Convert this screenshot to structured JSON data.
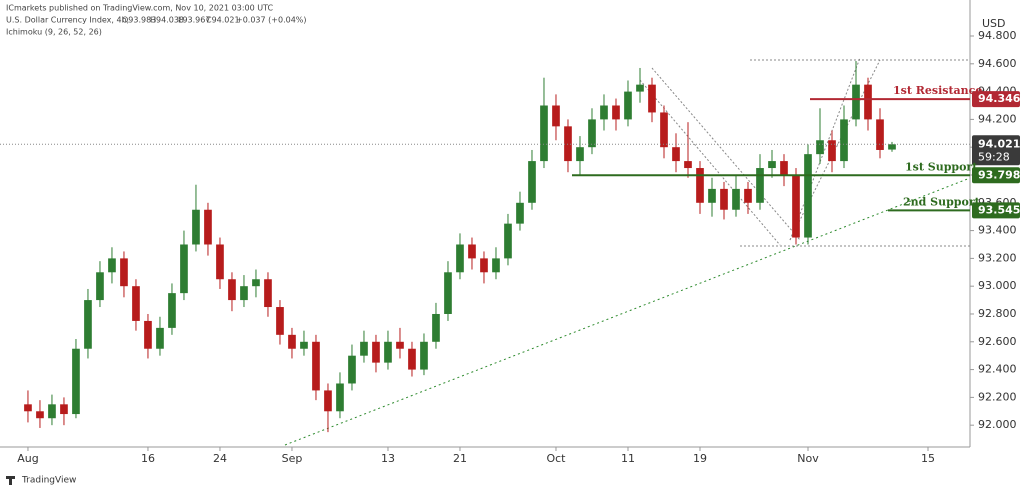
{
  "header": {
    "publisher": "ICmarkets published on TradingView.com, Nov 10, 2021 03:00 UTC",
    "symbol": "U.S. Dollar Currency Index, 4h,",
    "ohlc": [
      "O93.983",
      "H94.038",
      "L93.967",
      "C94.021",
      "+0.037 (+0.04%)"
    ],
    "indicator": "Ichimoku (9, 26, 52, 26)"
  },
  "chart_data": {
    "type": "candlestick",
    "currency": "USD",
    "up_color": "#2e7d32",
    "down_color": "#b71c1c",
    "x": [
      0,
      1,
      2,
      3,
      4,
      5,
      6,
      7,
      8,
      9,
      10,
      11,
      12,
      13,
      14,
      15,
      16,
      17,
      18,
      19,
      20,
      21,
      22,
      23,
      24,
      25,
      26,
      27,
      28,
      29,
      30,
      31,
      32,
      33,
      34,
      35,
      36,
      37,
      38,
      39,
      40,
      41,
      42,
      43,
      44,
      45,
      46,
      47,
      48,
      49,
      50,
      51,
      52,
      53,
      54,
      55,
      56,
      57,
      58,
      59,
      60,
      61,
      62,
      63,
      64,
      65,
      66,
      67,
      68,
      69,
      70,
      71,
      72
    ],
    "open": [
      92.15,
      92.1,
      92.05,
      92.15,
      92.08,
      92.55,
      92.9,
      93.1,
      93.2,
      93.0,
      92.75,
      92.55,
      92.7,
      92.95,
      93.3,
      93.55,
      93.3,
      93.05,
      92.9,
      93.0,
      93.05,
      92.85,
      92.65,
      92.55,
      92.6,
      92.25,
      92.1,
      92.3,
      92.5,
      92.6,
      92.45,
      92.6,
      92.55,
      92.4,
      92.6,
      92.8,
      93.1,
      93.3,
      93.2,
      93.1,
      93.2,
      93.45,
      93.6,
      93.9,
      94.3,
      94.15,
      93.9,
      94.0,
      94.2,
      94.3,
      94.2,
      94.4,
      94.45,
      94.25,
      94.0,
      93.9,
      93.85,
      93.6,
      93.7,
      93.55,
      93.7,
      93.6,
      93.85,
      93.9,
      93.8,
      93.35,
      93.95,
      94.05,
      93.9,
      94.2,
      94.45,
      94.2,
      93.983
    ],
    "high": [
      92.25,
      92.18,
      92.22,
      92.2,
      92.62,
      92.98,
      93.18,
      93.28,
      93.25,
      93.05,
      92.8,
      92.78,
      93.02,
      93.4,
      93.73,
      93.6,
      93.35,
      93.1,
      93.08,
      93.12,
      93.1,
      92.9,
      92.7,
      92.68,
      92.65,
      92.3,
      92.38,
      92.58,
      92.68,
      92.65,
      92.68,
      92.7,
      92.6,
      92.66,
      92.88,
      93.18,
      93.38,
      93.35,
      93.25,
      93.28,
      93.52,
      93.68,
      93.98,
      94.5,
      94.38,
      94.2,
      94.08,
      94.28,
      94.38,
      94.35,
      94.48,
      94.57,
      94.5,
      94.3,
      94.1,
      94.18,
      93.9,
      93.78,
      93.75,
      93.8,
      93.75,
      93.95,
      93.98,
      93.95,
      93.85,
      94.02,
      94.28,
      94.12,
      94.3,
      94.62,
      94.5,
      94.28,
      94.038
    ],
    "low": [
      92.02,
      91.98,
      92.0,
      92.0,
      92.05,
      92.48,
      92.85,
      93.02,
      92.92,
      92.68,
      92.48,
      92.5,
      92.65,
      92.9,
      93.25,
      93.22,
      92.98,
      92.82,
      92.85,
      92.92,
      92.78,
      92.58,
      92.48,
      92.5,
      92.18,
      91.95,
      92.05,
      92.25,
      92.45,
      92.38,
      92.4,
      92.48,
      92.35,
      92.36,
      92.55,
      92.75,
      93.05,
      93.12,
      93.02,
      93.05,
      93.15,
      93.4,
      93.55,
      93.85,
      94.05,
      93.82,
      93.8,
      93.95,
      94.12,
      94.12,
      94.15,
      94.32,
      94.18,
      93.92,
      93.82,
      93.78,
      93.52,
      93.5,
      93.48,
      93.5,
      93.52,
      93.55,
      93.78,
      93.72,
      93.3,
      93.3,
      93.88,
      93.82,
      93.85,
      94.15,
      94.12,
      93.92,
      93.967
    ],
    "close": [
      92.1,
      92.05,
      92.15,
      92.08,
      92.55,
      92.9,
      93.1,
      93.2,
      93.0,
      92.75,
      92.55,
      92.7,
      92.95,
      93.3,
      93.55,
      93.3,
      93.05,
      92.9,
      93.0,
      93.05,
      92.85,
      92.65,
      92.55,
      92.6,
      92.25,
      92.1,
      92.3,
      92.5,
      92.6,
      92.45,
      92.6,
      92.55,
      92.4,
      92.6,
      92.8,
      93.1,
      93.3,
      93.2,
      93.1,
      93.2,
      93.45,
      93.6,
      93.9,
      94.3,
      94.15,
      93.9,
      94.0,
      94.2,
      94.3,
      94.2,
      94.4,
      94.45,
      94.25,
      94.0,
      93.9,
      93.85,
      93.6,
      93.7,
      93.55,
      93.7,
      93.6,
      93.85,
      93.9,
      93.8,
      93.35,
      93.95,
      94.05,
      93.9,
      94.2,
      94.45,
      94.2,
      93.98,
      94.021
    ],
    "xlim": [
      -2.33,
      78.5
    ],
    "xticks": [
      {
        "value": 0,
        "label": "Aug"
      },
      {
        "value": 10,
        "label": "16"
      },
      {
        "value": 16,
        "label": "24"
      },
      {
        "value": 22,
        "label": "Sep"
      },
      {
        "value": 30,
        "label": "13"
      },
      {
        "value": 36,
        "label": "21"
      },
      {
        "value": 44,
        "label": "Oct"
      },
      {
        "value": 50,
        "label": "11"
      },
      {
        "value": 56,
        "label": "19"
      },
      {
        "value": 65,
        "label": "Nov"
      },
      {
        "value": 75,
        "label": "15"
      }
    ],
    "ylim": [
      91.843,
      95.059
    ],
    "yticks": [
      {
        "value": 92,
        "label": "92.000"
      },
      {
        "value": 92.2,
        "label": "92.200"
      },
      {
        "value": 92.4,
        "label": "92.400"
      },
      {
        "value": 92.6,
        "label": "92.600"
      },
      {
        "value": 92.8,
        "label": "92.800"
      },
      {
        "value": 93,
        "label": "93.000"
      },
      {
        "value": 93.2,
        "label": "93.200"
      },
      {
        "value": 93.4,
        "label": "93.400"
      },
      {
        "value": 93.6,
        "label": "93.600"
      },
      {
        "value": 93.8,
        "label": "93.800"
      },
      {
        "value": 94,
        "label": "94.000"
      },
      {
        "value": 94.2,
        "label": "94.200"
      },
      {
        "value": 94.4,
        "label": "94.400"
      },
      {
        "value": 94.6,
        "label": "94.600"
      },
      {
        "value": 94.8,
        "label": "94.800"
      }
    ],
    "last_price": 94.021,
    "countdown": "59:28",
    "levels": [
      {
        "name": "1st Resistance",
        "value": 94.346,
        "color": "#b22833"
      },
      {
        "name": "1st Support",
        "value": 93.798,
        "color": "#2e6b1f"
      },
      {
        "name": "2nd Support",
        "value": 93.545,
        "color": "#2e6b1f"
      }
    ]
  },
  "footer": "TradingView"
}
